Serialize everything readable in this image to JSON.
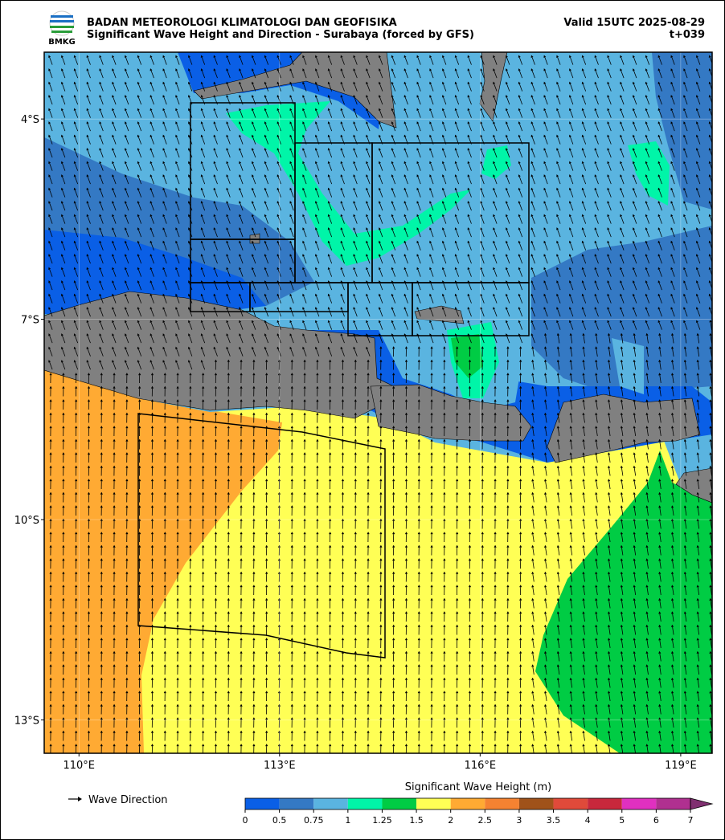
{
  "header": {
    "agency": "BADAN METEOROLOGI KLIMATOLOGI DAN GEOFISIKA",
    "title": "Significant Wave Height and Direction - Surabaya (forced by GFS)",
    "valid": "Valid 15UTC 2025-08-29",
    "lead": "t+039",
    "logo": "BMKG"
  },
  "map": {
    "lonlim": [
      109.48,
      119.47
    ],
    "latlim": [
      -13.5,
      -3.0
    ],
    "lon_ticks": [
      {
        "value": 110,
        "label": "110°E"
      },
      {
        "value": 113,
        "label": "113°E"
      },
      {
        "value": 116,
        "label": "116°E"
      },
      {
        "value": 119,
        "label": "119°E"
      }
    ],
    "lat_ticks": [
      {
        "value": -4,
        "label": "4°S"
      },
      {
        "value": -7,
        "label": "7°S"
      },
      {
        "value": -10,
        "label": "10°S"
      },
      {
        "value": -13,
        "label": "13°S"
      }
    ]
  },
  "legend": {
    "arrow_label": "Wave Direction"
  },
  "colorbar": {
    "label": "Significant Wave Height (m)",
    "bounds": [
      0,
      0.5,
      0.75,
      1,
      1.25,
      1.5,
      2,
      2.5,
      3,
      3.5,
      4,
      5,
      6,
      7
    ],
    "colors": [
      "#0a5fe6",
      "#3479c4",
      "#5ab4e0",
      "#00f5a8",
      "#00cc44",
      "#ffff55",
      "#ffaa33",
      "#f58231",
      "#a0521a",
      "#e04a3a",
      "#c8283c",
      "#e030c0",
      "#b03090"
    ],
    "extend_color": "#803070"
  }
}
